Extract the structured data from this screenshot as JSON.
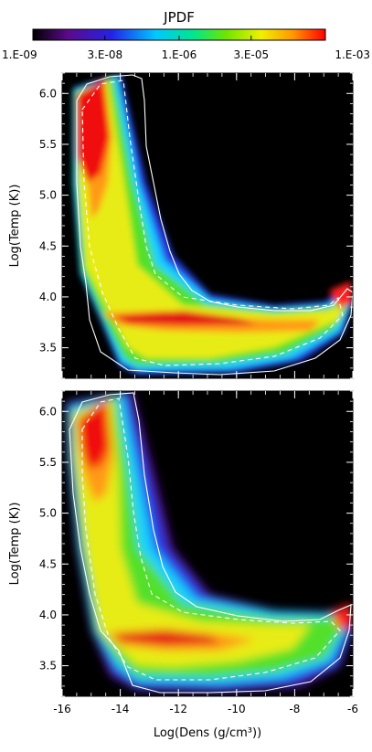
{
  "chart_data": {
    "type": "heatmap",
    "colorbar": {
      "title": "JPDF",
      "scale": "log",
      "range": [
        1e-09,
        0.001
      ],
      "tick_labels": [
        "1.E-09",
        "3.E-08",
        "1.E-06",
        "3.E-05",
        "1.E-03"
      ],
      "tick_values": [
        1e-09,
        3e-08,
        1e-06,
        3e-05,
        0.001
      ],
      "colormap": [
        "#000000",
        "#5a0a8a",
        "#2323e6",
        "#00c8ff",
        "#00e68c",
        "#6ee600",
        "#f0f000",
        "#ff9600",
        "#ff0000"
      ]
    },
    "panels": [
      {
        "xlabel": "",
        "ylabel": "Log(Temp (K))",
        "xlim": [
          -16,
          -6
        ],
        "ylim": [
          3.2,
          6.2
        ],
        "background": "#000000",
        "y_ticks": [
          "3.5",
          "4.0",
          "4.5",
          "5.0",
          "5.5",
          "6.0"
        ],
        "y_tick_values": [
          3.5,
          4.0,
          4.5,
          5.0,
          5.5,
          6.0
        ],
        "x_tick_labels_shown": false,
        "contour_colors": {
          "solid": "#ffffff",
          "dashed": "#ffffff"
        }
      },
      {
        "xlabel": "Log(Dens (g/cm³))",
        "ylabel": "Log(Temp (K))",
        "xlim": [
          -16,
          -6
        ],
        "ylim": [
          3.2,
          6.2
        ],
        "background": "#000000",
        "y_ticks": [
          "3.5",
          "4.0",
          "4.5",
          "5.0",
          "5.5",
          "6.0"
        ],
        "y_tick_values": [
          3.5,
          4.0,
          4.5,
          5.0,
          5.5,
          6.0
        ],
        "x_ticks": [
          "-16",
          "-14",
          "-12",
          "-10",
          "-8",
          "-6"
        ],
        "x_tick_values": [
          -16,
          -14,
          -12,
          -10,
          -8,
          -6
        ],
        "x_tick_labels_shown": true,
        "contour_colors": {
          "solid": "#ffffff",
          "dashed": "#ffffff"
        }
      }
    ]
  }
}
